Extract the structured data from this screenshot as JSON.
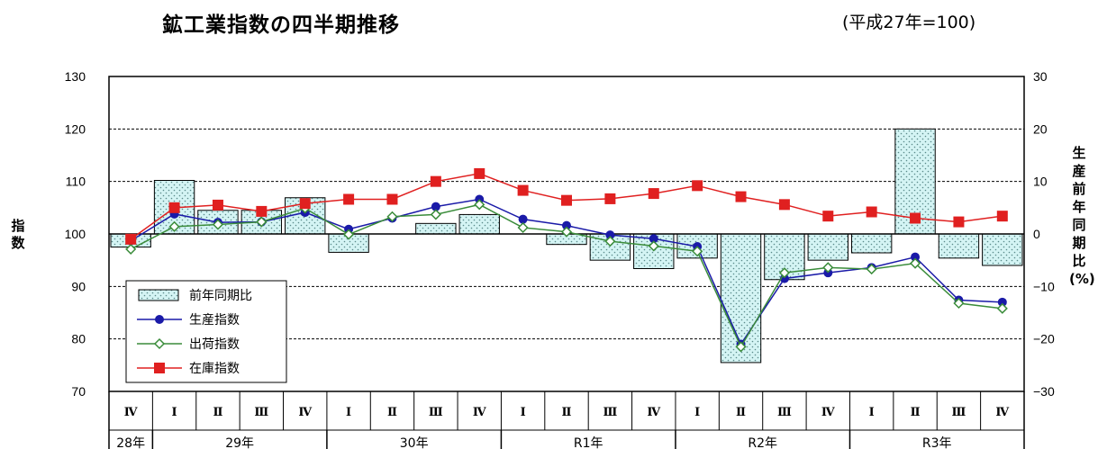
{
  "title": "鉱工業指数の四半期推移",
  "subtitle": "(平成27年=100)",
  "left_axis_label": "指数",
  "right_axis_label": "生産前年同期比(%)",
  "right_axis_label_chars": [
    "生",
    "産",
    "前",
    "年",
    "同",
    "期",
    "比",
    "(%)"
  ],
  "colors": {
    "production": "#1a1aa8",
    "shipment": "#3a8c3a",
    "inventory": "#e02020",
    "bar_fill": "#d4f4f4",
    "bar_dot": "#5a8a8a"
  },
  "chart_data": {
    "type": "bar+line",
    "title": "鉱工業指数の四半期推移",
    "subtitle": "(平成27年=100)",
    "y_left": {
      "label": "指数",
      "range": [
        70,
        130
      ],
      "ticks": [
        70,
        80,
        90,
        100,
        110,
        120,
        130
      ]
    },
    "y_right": {
      "label": "生産前年同期比(%)",
      "range": [
        -30,
        30
      ],
      "ticks": [
        -30,
        -20,
        -10,
        0,
        10,
        20,
        30
      ]
    },
    "quarters": [
      "Ⅳ",
      "Ⅰ",
      "Ⅱ",
      "Ⅲ",
      "Ⅳ",
      "Ⅰ",
      "Ⅱ",
      "Ⅲ",
      "Ⅳ",
      "Ⅰ",
      "Ⅱ",
      "Ⅲ",
      "Ⅳ",
      "Ⅰ",
      "Ⅱ",
      "Ⅲ",
      "Ⅳ",
      "Ⅰ",
      "Ⅱ",
      "Ⅲ",
      "Ⅳ"
    ],
    "years": [
      {
        "label": "28年",
        "span": 1
      },
      {
        "label": "29年",
        "span": 4
      },
      {
        "label": "30年",
        "span": 4
      },
      {
        "label": "R1年",
        "span": 4
      },
      {
        "label": "R2年",
        "span": 4
      },
      {
        "label": "R3年",
        "span": 4
      }
    ],
    "series": [
      {
        "name": "前年同期比",
        "type": "bar",
        "axis": "right",
        "values": [
          -2.5,
          10.2,
          4.5,
          4.5,
          6.9,
          -3.5,
          0,
          2.0,
          3.7,
          0,
          -2.0,
          -5.0,
          -6.6,
          -4.6,
          -24.5,
          -8.7,
          -5.0,
          -3.6,
          20.0,
          -4.6,
          -6.0
        ]
      },
      {
        "name": "生産指数",
        "type": "line",
        "axis": "left",
        "marker": "circle",
        "values": [
          98.7,
          103.8,
          102.2,
          102.3,
          104.1,
          100.9,
          103.0,
          105.2,
          106.6,
          102.8,
          101.6,
          99.8,
          99.1,
          97.6,
          79.0,
          91.5,
          92.6,
          93.6,
          95.6,
          87.4,
          87.0
        ]
      },
      {
        "name": "出荷指数",
        "type": "line",
        "axis": "left",
        "marker": "diamond",
        "values": [
          97.1,
          101.4,
          101.8,
          102.3,
          104.9,
          99.9,
          103.3,
          103.7,
          105.6,
          101.2,
          100.4,
          98.6,
          97.7,
          96.7,
          78.5,
          92.6,
          93.6,
          93.3,
          94.4,
          86.8,
          85.8
        ]
      },
      {
        "name": "在庫指数",
        "type": "line",
        "axis": "left",
        "marker": "square",
        "values": [
          99.0,
          105.0,
          105.5,
          104.3,
          105.8,
          106.6,
          106.6,
          110.0,
          111.5,
          108.3,
          106.4,
          106.7,
          107.7,
          109.2,
          107.1,
          105.6,
          103.4,
          104.2,
          103.0,
          102.3,
          103.4
        ]
      }
    ],
    "legend": {
      "placement": "bottom-left"
    },
    "grid": true
  }
}
